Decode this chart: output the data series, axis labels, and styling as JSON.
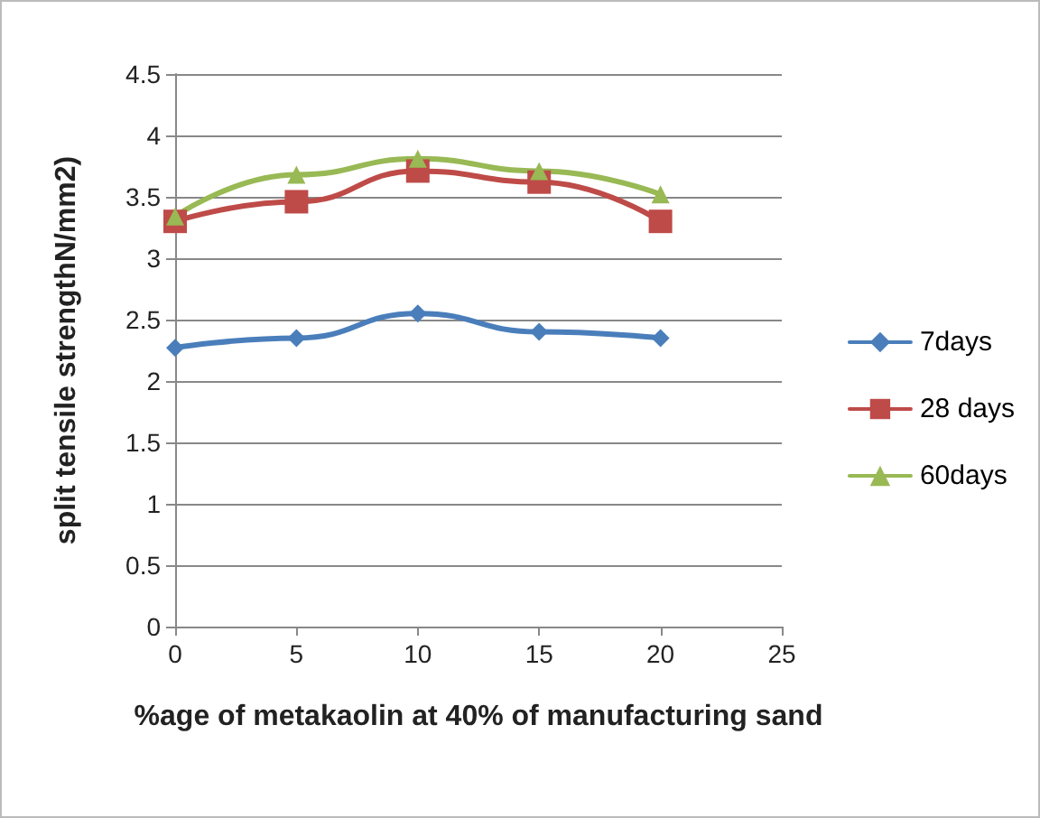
{
  "chart_data": {
    "type": "line",
    "xlabel": "%age of metakaolin at 40% of manufacturing sand",
    "ylabel": "split tensile strengthN/mm2)",
    "x": [
      0,
      5,
      10,
      15,
      20
    ],
    "series": [
      {
        "name": "7days",
        "color": "#4a7ebb",
        "marker": "diamond",
        "values": [
          2.27,
          2.35,
          2.55,
          2.4,
          2.35
        ]
      },
      {
        "name": "28 days",
        "color": "#be4b48",
        "marker": "square",
        "values": [
          3.3,
          3.46,
          3.71,
          3.62,
          3.3
        ]
      },
      {
        "name": "60days",
        "color": "#98b954",
        "marker": "triangle",
        "values": [
          3.34,
          3.68,
          3.81,
          3.71,
          3.52
        ]
      }
    ],
    "xlim": [
      0,
      25
    ],
    "xticks": [
      0,
      5,
      10,
      15,
      20,
      25
    ],
    "ylim": [
      0,
      4.5
    ],
    "yticks": [
      0,
      0.5,
      1,
      1.5,
      2,
      2.5,
      3,
      3.5,
      4,
      4.5
    ],
    "grid": "y",
    "legend": "right"
  }
}
